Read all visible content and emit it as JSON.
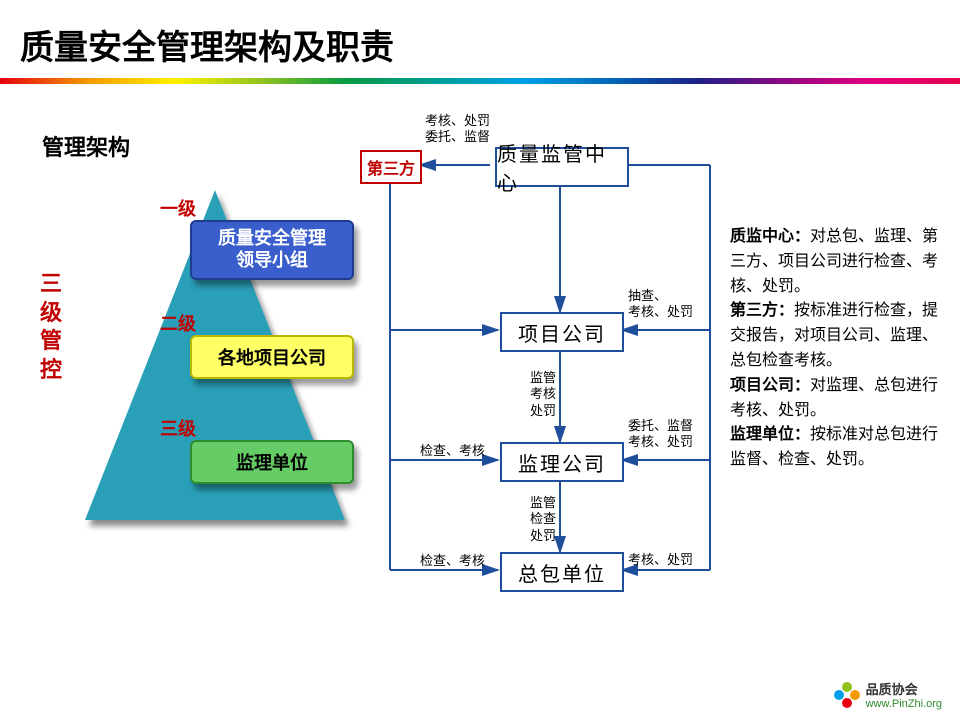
{
  "title": "质量安全管理架构及职责",
  "subtitle": "管理架构",
  "sideLabel": "三级管控",
  "levels": {
    "l1": "一级",
    "l2": "二级",
    "l3": "三级"
  },
  "pyramid": {
    "box1": {
      "text": "质量安全管理\n领导小组",
      "bg": "#3a5fcd",
      "fg": "#ffffff",
      "border": "#1f3d8f"
    },
    "box2": {
      "text": "各地项目公司",
      "bg": "#ffff66",
      "fg": "#000000",
      "border": "#b8b800"
    },
    "box3": {
      "text": "监理单位",
      "bg": "#66cc66",
      "fg": "#000000",
      "border": "#2e8b2e"
    },
    "triangleFill": "#2aa0b8"
  },
  "flow": {
    "thirdparty": "第三方",
    "n1": "质量监管中心",
    "n2": "项目公司",
    "n3": "监理公司",
    "n4": "总包单位"
  },
  "annotations": {
    "a1": "考核、处罚\n委托、监督",
    "a2": "抽查、\n考核、处罚",
    "a3": "监管\n考核\n处罚",
    "a4": "委托、监督\n考核、处罚",
    "a5": "检查、考核",
    "a6": "监管\n检查\n处罚",
    "a7": "考核、处罚",
    "a8": "检查、考核"
  },
  "paragraph": "<b>质监中心：</b>对总包、监理、第三方、项目公司进行检查、考核、处罚。<br><b>第三方：</b>按标准进行检查，提交报告，对项目公司、监理、总包检查考核。<br><b>项目公司：</b>对监理、总包进行考核、处罚。<br><b>监理单位：</b>按标准对总包进行监督、检查、处罚。",
  "footer": {
    "brand": "品质协会",
    "url": "www.PinZhi.org",
    "petals": [
      "#8fc31f",
      "#f39800",
      "#e60012",
      "#00a0e9"
    ]
  },
  "colors": {
    "arrow": "#1f4e9c"
  }
}
